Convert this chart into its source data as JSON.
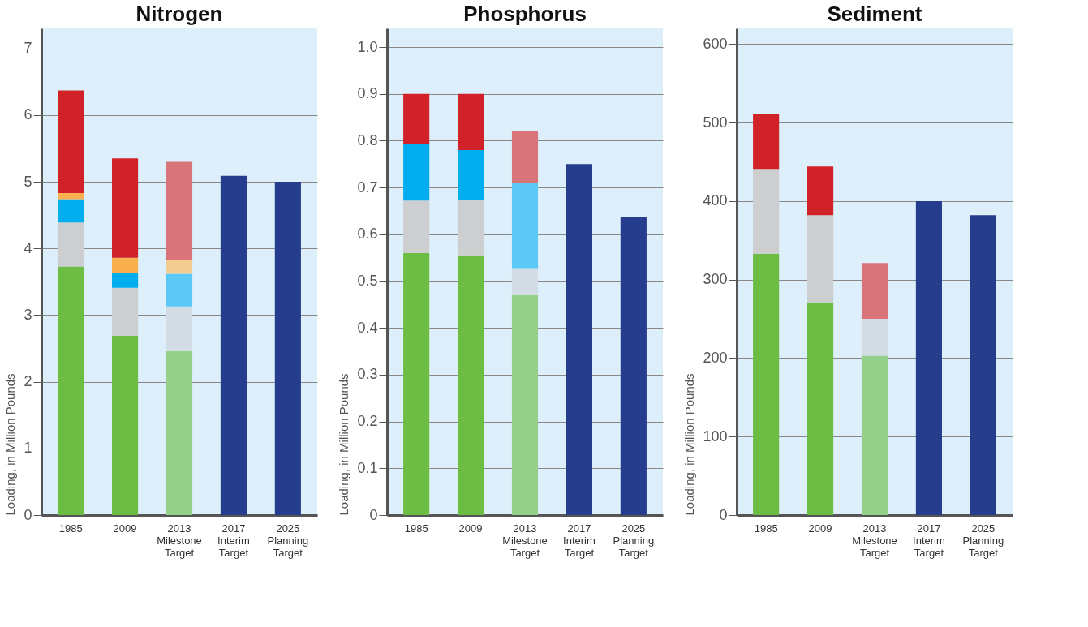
{
  "chart_data": [
    {
      "type": "bar",
      "stacked": true,
      "title": "Nitrogen",
      "ylabel": "Loading, in Million Pounds",
      "grid": "y",
      "categories": [
        "1985",
        "2009",
        "2013 Milestone Target",
        "2017 Interim Target",
        "2025 Planning Target"
      ],
      "ylim": [
        0,
        7.3
      ],
      "yticks": [
        0,
        1,
        2,
        3,
        4,
        5,
        6,
        7
      ],
      "series": [
        {
          "colors": [
            "#6dbd45",
            "#6dbd45",
            "#95d08b",
            null,
            null
          ],
          "values": [
            3.73,
            2.69,
            2.46,
            null,
            null
          ]
        },
        {
          "colors": [
            "#cdcecf",
            "#cdcecf",
            "#d3dbe3",
            null,
            null
          ],
          "values": [
            0.66,
            0.72,
            0.67,
            null,
            null
          ]
        },
        {
          "colors": [
            "#00aeef",
            "#00aeef",
            "#5bc8f5",
            null,
            null
          ],
          "values": [
            0.35,
            0.22,
            0.49,
            null,
            null
          ]
        },
        {
          "colors": [
            "#fbb04f",
            "#fbb04f",
            "#f2cc90",
            null,
            null
          ],
          "values": [
            0.09,
            0.23,
            0.2,
            null,
            null
          ]
        },
        {
          "colors": [
            "#d12229",
            "#d12229",
            "#d9747a",
            null,
            null
          ],
          "values": [
            1.54,
            1.49,
            1.48,
            null,
            null
          ]
        },
        {
          "colors": [
            null,
            null,
            null,
            "#253d8c",
            "#253d8c"
          ],
          "values": [
            null,
            null,
            null,
            5.09,
            5.0
          ]
        }
      ]
    },
    {
      "type": "bar",
      "stacked": true,
      "title": "Phosphorus",
      "ylabel": "Loading, in Million Pounds",
      "grid": "y",
      "categories": [
        "1985",
        "2009",
        "2013 Milestone Target",
        "2017 Interim Target",
        "2025 Planning Target"
      ],
      "ylim": [
        0,
        1.04
      ],
      "yticks": [
        0,
        0.1,
        0.2,
        0.3,
        0.4,
        0.5,
        0.6,
        0.7,
        0.8,
        0.9,
        {
          "value": 1,
          "label": "1.0"
        }
      ],
      "series": [
        {
          "colors": [
            "#6dbd45",
            "#6dbd45",
            "#95d08b",
            null,
            null
          ],
          "values": [
            0.56,
            0.555,
            0.47,
            null,
            null
          ]
        },
        {
          "colors": [
            "#cdcecf",
            "#cdcecf",
            "#d3dbe3",
            null,
            null
          ],
          "values": [
            0.112,
            0.118,
            0.056,
            null,
            null
          ]
        },
        {
          "colors": [
            "#00aeef",
            "#00aeef",
            "#5bc8f5",
            null,
            null
          ],
          "values": [
            0.12,
            0.107,
            0.183,
            null,
            null
          ]
        },
        {
          "colors": [
            "#d12229",
            "#d12229",
            "#d9747a",
            null,
            null
          ],
          "values": [
            0.108,
            0.12,
            0.111,
            null,
            null
          ]
        },
        {
          "colors": [
            null,
            null,
            null,
            "#253d8c",
            "#253d8c"
          ],
          "values": [
            null,
            null,
            null,
            0.75,
            0.636
          ]
        }
      ]
    },
    {
      "type": "bar",
      "stacked": true,
      "title": "Sediment",
      "ylabel": "Loading, in Million Pounds",
      "grid": "y",
      "categories": [
        "1985",
        "2009",
        "2013 Milestone Target",
        "2017 Interim Target",
        "2025 Planning Target"
      ],
      "ylim": [
        0,
        620
      ],
      "yticks": [
        0,
        100,
        200,
        300,
        400,
        500,
        600
      ],
      "series": [
        {
          "colors": [
            "#6dbd45",
            "#6dbd45",
            "#95d08b",
            null,
            null
          ],
          "values": [
            333,
            271,
            203,
            null,
            null
          ]
        },
        {
          "colors": [
            "#cdcecf",
            "#cdcecf",
            "#d3dbe3",
            null,
            null
          ],
          "values": [
            108,
            111,
            47,
            null,
            null
          ]
        },
        {
          "colors": [
            "#d12229",
            "#d12229",
            "#d9747a",
            null,
            null
          ],
          "values": [
            70,
            62,
            71,
            null,
            null
          ]
        },
        {
          "colors": [
            null,
            null,
            null,
            "#253d8c",
            "#253d8c"
          ],
          "values": [
            null,
            null,
            null,
            400,
            382
          ]
        }
      ]
    }
  ]
}
